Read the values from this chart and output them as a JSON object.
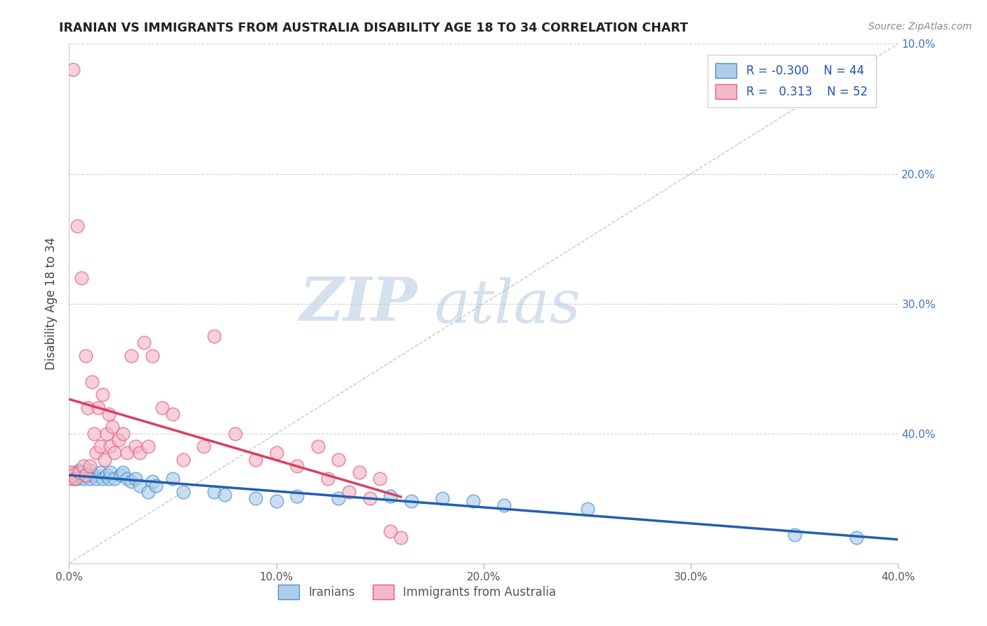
{
  "title": "IRANIAN VS IMMIGRANTS FROM AUSTRALIA DISABILITY AGE 18 TO 34 CORRELATION CHART",
  "source": "Source: ZipAtlas.com",
  "ylabel": "Disability Age 18 to 34",
  "xlim": [
    0.0,
    0.4
  ],
  "ylim": [
    0.0,
    0.4
  ],
  "xticks": [
    0.0,
    0.1,
    0.2,
    0.3,
    0.4
  ],
  "yticks": [
    0.0,
    0.1,
    0.2,
    0.3,
    0.4
  ],
  "xticklabels": [
    "0.0%",
    "10.0%",
    "20.0%",
    "30.0%",
    "40.0%"
  ],
  "right_yticklabels": [
    "40.0%",
    "30.0%",
    "20.0%",
    "10.0%"
  ],
  "legend_r_blue": "-0.300",
  "legend_n_blue": "44",
  "legend_r_pink": "0.313",
  "legend_n_pink": "52",
  "blue_color": "#aecde8",
  "pink_color": "#f4b8c8",
  "blue_edge_color": "#4a90d9",
  "pink_edge_color": "#e06080",
  "blue_line_color": "#2060b0",
  "pink_line_color": "#d94060",
  "watermark_zip": "ZIP",
  "watermark_atlas": "atlas",
  "blue_scatter_x": [
    0.002,
    0.003,
    0.004,
    0.005,
    0.005,
    0.006,
    0.007,
    0.008,
    0.009,
    0.01,
    0.01,
    0.012,
    0.013,
    0.015,
    0.016,
    0.018,
    0.019,
    0.02,
    0.022,
    0.025,
    0.026,
    0.028,
    0.03,
    0.032,
    0.034,
    0.038,
    0.04,
    0.042,
    0.05,
    0.055,
    0.07,
    0.075,
    0.09,
    0.1,
    0.11,
    0.13,
    0.155,
    0.165,
    0.18,
    0.195,
    0.21,
    0.25,
    0.35,
    0.38
  ],
  "blue_scatter_y": [
    0.065,
    0.07,
    0.065,
    0.072,
    0.068,
    0.07,
    0.065,
    0.068,
    0.07,
    0.065,
    0.072,
    0.068,
    0.065,
    0.07,
    0.065,
    0.068,
    0.065,
    0.07,
    0.065,
    0.068,
    0.07,
    0.065,
    0.063,
    0.065,
    0.06,
    0.055,
    0.063,
    0.06,
    0.065,
    0.055,
    0.055,
    0.053,
    0.05,
    0.048,
    0.052,
    0.05,
    0.052,
    0.048,
    0.05,
    0.048,
    0.045,
    0.042,
    0.022,
    0.02
  ],
  "pink_scatter_x": [
    0.0,
    0.001,
    0.002,
    0.002,
    0.003,
    0.004,
    0.005,
    0.006,
    0.007,
    0.008,
    0.008,
    0.009,
    0.01,
    0.011,
    0.012,
    0.013,
    0.014,
    0.015,
    0.016,
    0.017,
    0.018,
    0.019,
    0.02,
    0.021,
    0.022,
    0.024,
    0.026,
    0.028,
    0.03,
    0.032,
    0.034,
    0.036,
    0.038,
    0.04,
    0.045,
    0.05,
    0.055,
    0.065,
    0.07,
    0.08,
    0.09,
    0.1,
    0.11,
    0.12,
    0.125,
    0.13,
    0.135,
    0.14,
    0.145,
    0.15,
    0.155,
    0.16
  ],
  "pink_scatter_y": [
    0.065,
    0.07,
    0.38,
    0.068,
    0.065,
    0.26,
    0.07,
    0.22,
    0.075,
    0.16,
    0.068,
    0.12,
    0.075,
    0.14,
    0.1,
    0.085,
    0.12,
    0.09,
    0.13,
    0.08,
    0.1,
    0.115,
    0.09,
    0.105,
    0.085,
    0.095,
    0.1,
    0.085,
    0.16,
    0.09,
    0.085,
    0.17,
    0.09,
    0.16,
    0.12,
    0.115,
    0.08,
    0.09,
    0.175,
    0.1,
    0.08,
    0.085,
    0.075,
    0.09,
    0.065,
    0.08,
    0.055,
    0.07,
    0.05,
    0.065,
    0.025,
    0.02
  ]
}
